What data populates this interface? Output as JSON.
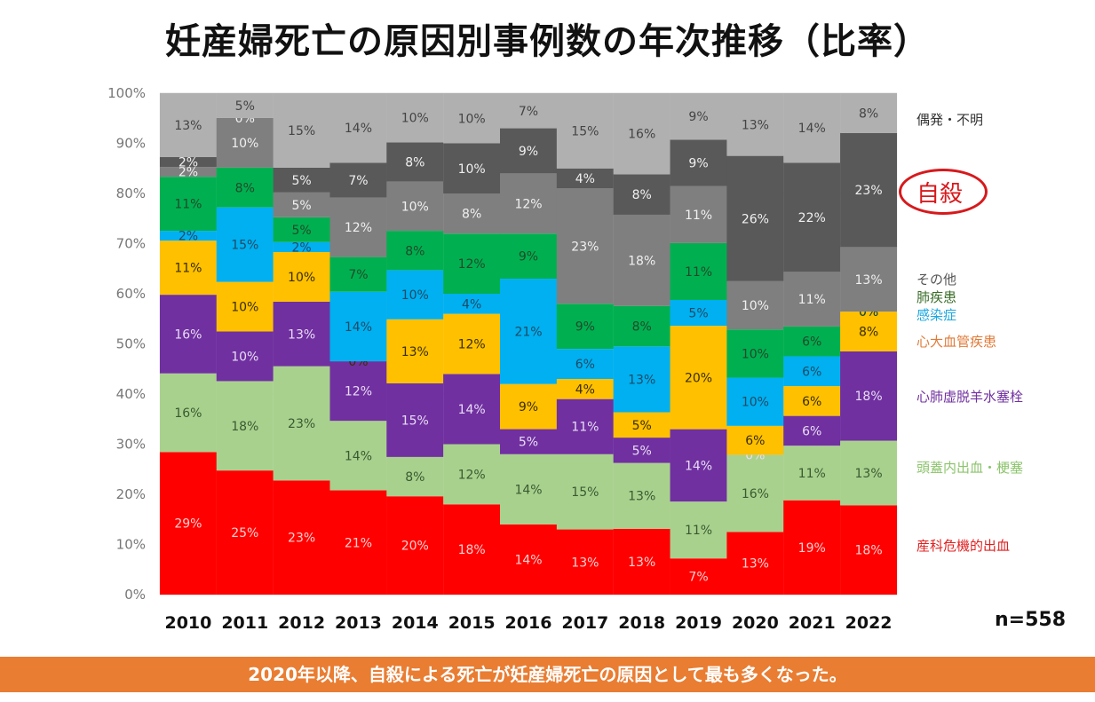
{
  "title": "妊産婦死亡の原因別事例数の年次推移（比率）",
  "n_label": "n=558",
  "banner": "2020年以降、自殺による死亡が妊産婦死亡の原因として最も多くなった。",
  "highlight_label": "自殺",
  "chart_data": {
    "type": "bar",
    "stacked": true,
    "percent": true,
    "title": "妊産婦死亡の原因別事例数の年次推移（比率）",
    "xlabel": "",
    "ylabel": "",
    "ylim": [
      0,
      100
    ],
    "yticks": [
      "0%",
      "10%",
      "20%",
      "30%",
      "40%",
      "50%",
      "60%",
      "70%",
      "80%",
      "90%",
      "100%"
    ],
    "grid": true,
    "legend_placement": "right",
    "categories": [
      "2010",
      "2011",
      "2012",
      "2013",
      "2014",
      "2015",
      "2016",
      "2017",
      "2018",
      "2019",
      "2020",
      "2021",
      "2022"
    ],
    "series": [
      {
        "name": "産科危機的出血",
        "color": "#ff0000",
        "label_color": "#ffd0d0",
        "legend_color": "#e02020",
        "values": [
          29,
          25,
          23,
          21,
          20,
          18,
          14,
          13,
          13,
          7,
          13,
          19,
          18
        ]
      },
      {
        "name": "頭蓋内出血・梗塞",
        "color": "#a9d18e",
        "label_color": "#3a5a30",
        "legend_color": "#8cc46c",
        "values": [
          16,
          18,
          23,
          14,
          8,
          12,
          14,
          15,
          13,
          11,
          16,
          11,
          13
        ]
      },
      {
        "name": "心肺虚脱羊水塞栓",
        "color": "#7030a0",
        "label_color": "#e8dcf5",
        "legend_color": "#7030a0",
        "values": [
          16,
          10,
          13,
          12,
          15,
          14,
          5,
          11,
          5,
          14,
          0,
          6,
          18
        ]
      },
      {
        "name": "心大血管疾患",
        "color": "#ffc000",
        "label_color": "#3a2e00",
        "legend_color": "#e07b39",
        "values": [
          11,
          10,
          10,
          0,
          13,
          12,
          9,
          4,
          5,
          20,
          6,
          6,
          8
        ]
      },
      {
        "name": "感染症",
        "color": "#00b0f0",
        "label_color": "#1a4a66",
        "legend_color": "#1ca8e0",
        "values": [
          2,
          15,
          2,
          14,
          10,
          4,
          21,
          6,
          13,
          5,
          10,
          6,
          0
        ]
      },
      {
        "name": "肺疾患",
        "color": "#00b050",
        "label_color": "#1e4a2a",
        "legend_color": "#3a6e2a",
        "values": [
          11,
          8,
          5,
          7,
          8,
          12,
          9,
          9,
          8,
          11,
          10,
          6,
          0
        ]
      },
      {
        "name": "その他",
        "color": "#7f7f7f",
        "label_color": "#f0f0f0",
        "legend_color": "#555555",
        "values": [
          2,
          10,
          5,
          12,
          10,
          8,
          12,
          23,
          18,
          11,
          10,
          11,
          13
        ]
      },
      {
        "name": "自殺",
        "color": "#595959",
        "label_color": "#f0f0f0",
        "legend_color": "#d7191c",
        "values": [
          2,
          0,
          5,
          7,
          8,
          10,
          9,
          4,
          8,
          9,
          26,
          22,
          23
        ]
      },
      {
        "name": "偶発・不明",
        "color": "#b0b0b0",
        "label_color": "#444444",
        "legend_color": "#333333",
        "values": [
          13,
          5,
          15,
          14,
          10,
          10,
          7,
          15,
          16,
          9,
          13,
          14,
          8
        ]
      }
    ]
  }
}
